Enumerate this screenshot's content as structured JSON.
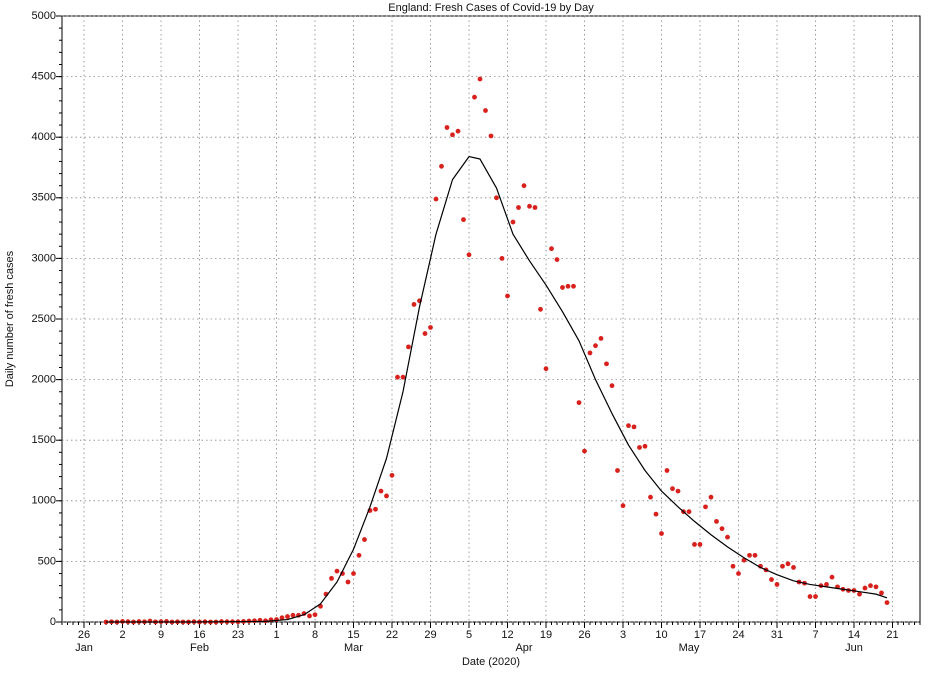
{
  "chart_data": {
    "type": "scatter",
    "title": "England: Fresh Cases of Covid-19 by Day",
    "xlabel": "Date (2020)",
    "ylabel": "Daily number of fresh cases",
    "xlim": [
      "2020-01-22",
      "2020-06-26"
    ],
    "xticks": [
      {
        "value": "2020-01-26",
        "label": "26"
      },
      {
        "value": "2020-02-02",
        "label": "2"
      },
      {
        "value": "2020-02-09",
        "label": "9"
      },
      {
        "value": "2020-02-16",
        "label": "16"
      },
      {
        "value": "2020-02-23",
        "label": "23"
      },
      {
        "value": "2020-03-01",
        "label": "1"
      },
      {
        "value": "2020-03-08",
        "label": "8"
      },
      {
        "value": "2020-03-15",
        "label": "15"
      },
      {
        "value": "2020-03-22",
        "label": "22"
      },
      {
        "value": "2020-03-29",
        "label": "29"
      },
      {
        "value": "2020-04-05",
        "label": "5"
      },
      {
        "value": "2020-04-12",
        "label": "12"
      },
      {
        "value": "2020-04-19",
        "label": "19"
      },
      {
        "value": "2020-04-26",
        "label": "26"
      },
      {
        "value": "2020-05-03",
        "label": "3"
      },
      {
        "value": "2020-05-10",
        "label": "10"
      },
      {
        "value": "2020-05-17",
        "label": "17"
      },
      {
        "value": "2020-05-24",
        "label": "24"
      },
      {
        "value": "2020-05-31",
        "label": "31"
      },
      {
        "value": "2020-06-07",
        "label": "7"
      },
      {
        "value": "2020-06-14",
        "label": "14"
      },
      {
        "value": "2020-06-21",
        "label": "21"
      }
    ],
    "month_labels": [
      {
        "value": "2020-01-26",
        "label": "Jan"
      },
      {
        "value": "2020-02-16",
        "label": "Feb"
      },
      {
        "value": "2020-03-15",
        "label": "Mar"
      },
      {
        "value": "2020-04-15",
        "label": "Apr"
      },
      {
        "value": "2020-05-15",
        "label": "May"
      },
      {
        "value": "2020-06-14",
        "label": "Jun"
      }
    ],
    "ylim": [
      0,
      5000
    ],
    "yticks": [
      0,
      500,
      1000,
      1500,
      2000,
      2500,
      3000,
      3500,
      4000,
      4500,
      5000
    ],
    "grid": true,
    "series": [
      {
        "style": "points",
        "color": "#d8201c",
        "x": [
          "2020-01-30",
          "2020-01-31",
          "2020-02-01",
          "2020-02-02",
          "2020-02-03",
          "2020-02-04",
          "2020-02-05",
          "2020-02-06",
          "2020-02-07",
          "2020-02-08",
          "2020-02-09",
          "2020-02-10",
          "2020-02-11",
          "2020-02-12",
          "2020-02-13",
          "2020-02-14",
          "2020-02-15",
          "2020-02-16",
          "2020-02-17",
          "2020-02-18",
          "2020-02-19",
          "2020-02-20",
          "2020-02-21",
          "2020-02-22",
          "2020-02-23",
          "2020-02-24",
          "2020-02-25",
          "2020-02-26",
          "2020-02-27",
          "2020-02-28",
          "2020-02-29",
          "2020-03-01",
          "2020-03-02",
          "2020-03-03",
          "2020-03-04",
          "2020-03-05",
          "2020-03-06",
          "2020-03-07",
          "2020-03-08",
          "2020-03-09",
          "2020-03-10",
          "2020-03-11",
          "2020-03-12",
          "2020-03-13",
          "2020-03-14",
          "2020-03-15",
          "2020-03-16",
          "2020-03-17",
          "2020-03-18",
          "2020-03-19",
          "2020-03-20",
          "2020-03-21",
          "2020-03-22",
          "2020-03-23",
          "2020-03-24",
          "2020-03-25",
          "2020-03-26",
          "2020-03-27",
          "2020-03-28",
          "2020-03-29",
          "2020-03-30",
          "2020-03-31",
          "2020-04-01",
          "2020-04-02",
          "2020-04-03",
          "2020-04-04",
          "2020-04-05",
          "2020-04-06",
          "2020-04-07",
          "2020-04-08",
          "2020-04-09",
          "2020-04-10",
          "2020-04-11",
          "2020-04-12",
          "2020-04-13",
          "2020-04-14",
          "2020-04-15",
          "2020-04-16",
          "2020-04-17",
          "2020-04-18",
          "2020-04-19",
          "2020-04-20",
          "2020-04-21",
          "2020-04-22",
          "2020-04-23",
          "2020-04-24",
          "2020-04-25",
          "2020-04-26",
          "2020-04-27",
          "2020-04-28",
          "2020-04-29",
          "2020-04-30",
          "2020-05-01",
          "2020-05-02",
          "2020-05-03",
          "2020-05-04",
          "2020-05-05",
          "2020-05-06",
          "2020-05-07",
          "2020-05-08",
          "2020-05-09",
          "2020-05-10",
          "2020-05-11",
          "2020-05-12",
          "2020-05-13",
          "2020-05-14",
          "2020-05-15",
          "2020-05-16",
          "2020-05-17",
          "2020-05-18",
          "2020-05-19",
          "2020-05-20",
          "2020-05-21",
          "2020-05-22",
          "2020-05-23",
          "2020-05-24",
          "2020-05-25",
          "2020-05-26",
          "2020-05-27",
          "2020-05-28",
          "2020-05-29",
          "2020-05-30",
          "2020-05-31",
          "2020-06-01",
          "2020-06-02",
          "2020-06-03",
          "2020-06-04",
          "2020-06-05",
          "2020-06-06",
          "2020-06-07",
          "2020-06-08",
          "2020-06-09",
          "2020-06-10",
          "2020-06-11",
          "2020-06-12",
          "2020-06-13",
          "2020-06-14",
          "2020-06-15",
          "2020-06-16",
          "2020-06-17",
          "2020-06-18",
          "2020-06-19",
          "2020-06-20"
        ],
        "values": [
          0,
          2,
          0,
          5,
          3,
          0,
          4,
          2,
          8,
          1,
          3,
          5,
          0,
          2,
          0,
          0,
          3,
          0,
          2,
          0,
          0,
          4,
          3,
          3,
          2,
          5,
          8,
          10,
          14,
          10,
          18,
          20,
          35,
          45,
          55,
          55,
          70,
          50,
          60,
          130,
          230,
          360,
          420,
          400,
          330,
          400,
          550,
          680,
          920,
          930,
          1080,
          1040,
          1210,
          2020,
          2020,
          2270,
          2620,
          2650,
          2380,
          2430,
          3490,
          3760,
          4080,
          4020,
          4050,
          3320,
          3030,
          4330,
          4480,
          4220,
          4010,
          3500,
          3000,
          2690,
          3300,
          3420,
          3600,
          3430,
          3420,
          2580,
          2090,
          3080,
          2990,
          2760,
          2770,
          2770,
          1810,
          1410,
          2220,
          2280,
          2340,
          2130,
          1950,
          1250,
          960,
          1620,
          1610,
          1440,
          1450,
          1030,
          890,
          730,
          1250,
          1100,
          1080,
          910,
          910,
          640,
          640,
          950,
          1030,
          830,
          770,
          700,
          460,
          400,
          510,
          550,
          550,
          460,
          430,
          350,
          310,
          460,
          480,
          450,
          330,
          320,
          210,
          210,
          300,
          310,
          370,
          290,
          270,
          260,
          260,
          230,
          280,
          300,
          290,
          240,
          160
        ]
      },
      {
        "style": "line",
        "color": "#000000",
        "x": [
          "2020-01-30",
          "2020-02-15",
          "2020-02-28",
          "2020-03-03",
          "2020-03-06",
          "2020-03-09",
          "2020-03-12",
          "2020-03-15",
          "2020-03-18",
          "2020-03-21",
          "2020-03-24",
          "2020-03-27",
          "2020-03-30",
          "2020-04-02",
          "2020-04-05",
          "2020-04-07",
          "2020-04-10",
          "2020-04-13",
          "2020-04-16",
          "2020-04-19",
          "2020-04-22",
          "2020-04-25",
          "2020-04-28",
          "2020-05-01",
          "2020-05-04",
          "2020-05-07",
          "2020-05-10",
          "2020-05-13",
          "2020-05-16",
          "2020-05-19",
          "2020-05-22",
          "2020-05-25",
          "2020-05-28",
          "2020-05-31",
          "2020-06-03",
          "2020-06-06",
          "2020-06-09",
          "2020-06-12",
          "2020-06-15",
          "2020-06-18",
          "2020-06-20"
        ],
        "values": [
          0,
          0,
          5,
          20,
          60,
          150,
          330,
          600,
          950,
          1350,
          1900,
          2600,
          3200,
          3650,
          3840,
          3820,
          3580,
          3200,
          2980,
          2780,
          2560,
          2320,
          2000,
          1720,
          1460,
          1250,
          1080,
          950,
          830,
          720,
          620,
          530,
          450,
          390,
          340,
          310,
          290,
          270,
          250,
          230,
          200
        ]
      }
    ]
  }
}
